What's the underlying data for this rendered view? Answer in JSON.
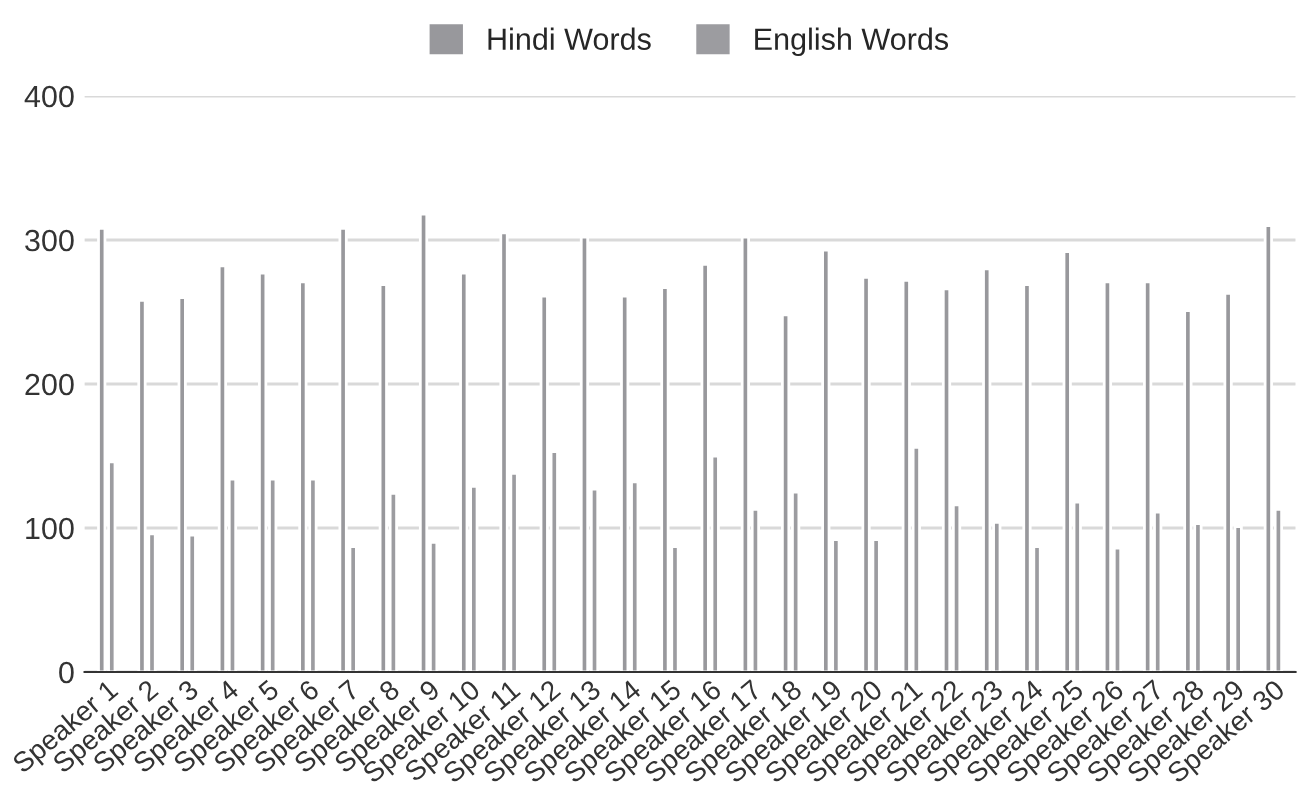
{
  "chart_data": {
    "type": "bar",
    "categories": [
      "Speaker 1",
      "Speaker 2",
      "Speaker 3",
      "Speaker 4",
      "Speaker 5",
      "Speaker 6",
      "Speaker 7",
      "Speaker 8",
      "Speaker 9",
      "Speaker 10",
      "Speaker 11",
      "Speaker 12",
      "Speaker 13",
      "Speaker 14",
      "Speaker 15",
      "Speaker 16",
      "Speaker 17",
      "Speaker 18",
      "Speaker 19",
      "Speaker 20",
      "Speaker 21",
      "Speaker 22",
      "Speaker 23",
      "Speaker 24",
      "Speaker 25",
      "Speaker 26",
      "Speaker 27",
      "Speaker 28",
      "Speaker 29",
      "Speaker 30"
    ],
    "series": [
      {
        "name": "Hindi Words",
        "color": "#98989c",
        "values": [
          308,
          258,
          260,
          282,
          277,
          271,
          308,
          269,
          318,
          277,
          305,
          261,
          302,
          261,
          267,
          283,
          302,
          248,
          293,
          274,
          272,
          266,
          280,
          269,
          292,
          271,
          271,
          251,
          263,
          310
        ]
      },
      {
        "name": "English Words",
        "color": "#9c9ca0",
        "values": [
          146,
          96,
          95,
          134,
          134,
          134,
          87,
          124,
          90,
          129,
          138,
          153,
          127,
          132,
          87,
          150,
          113,
          125,
          92,
          92,
          156,
          116,
          104,
          87,
          118,
          86,
          111,
          103,
          101,
          113
        ]
      }
    ],
    "ylim": [
      0,
      400
    ],
    "yticks": [
      0,
      100,
      200,
      300,
      400
    ],
    "grid": "y",
    "legend": "top"
  }
}
